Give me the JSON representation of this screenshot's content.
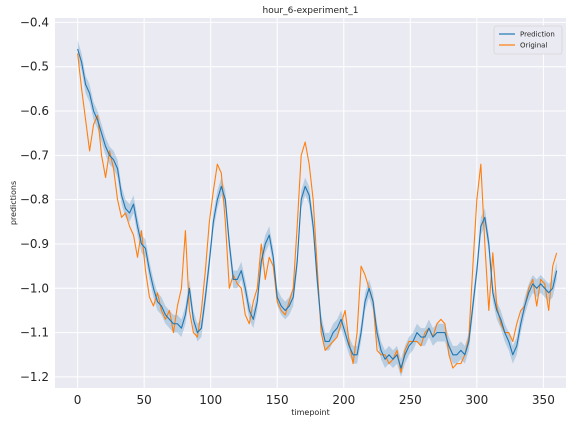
{
  "chart_data": {
    "type": "line",
    "title": "hour_6-experiment_1",
    "xlabel": "timepoint",
    "ylabel": "predictions",
    "xlim": [
      -17,
      367
    ],
    "ylim": [
      -1.225,
      -0.39
    ],
    "x_ticks": [
      0,
      50,
      100,
      150,
      200,
      250,
      300,
      350
    ],
    "x_tick_labels": [
      "0",
      "50",
      "100",
      "150",
      "200",
      "250",
      "300",
      "350"
    ],
    "y_ticks": [
      -0.4,
      -0.5,
      -0.6,
      -0.7,
      -0.8,
      -0.9,
      -1.0,
      -1.1,
      -1.2
    ],
    "y_tick_labels": [
      "−0.4",
      "−0.5",
      "−0.6",
      "−0.7",
      "−0.8",
      "−0.9",
      "−1.0",
      "−1.1",
      "−1.2"
    ],
    "grid": true,
    "legend_position": "top-right",
    "series": [
      {
        "name": "Prediction",
        "color": "#1f77b4",
        "band": 0.02,
        "x": [
          0,
          3,
          6,
          9,
          12,
          15,
          18,
          21,
          24,
          27,
          30,
          33,
          36,
          39,
          42,
          45,
          48,
          51,
          54,
          57,
          60,
          63,
          66,
          69,
          72,
          75,
          78,
          81,
          84,
          87,
          90,
          93,
          96,
          99,
          102,
          105,
          108,
          111,
          114,
          117,
          120,
          123,
          126,
          129,
          132,
          135,
          138,
          141,
          144,
          147,
          150,
          153,
          156,
          159,
          162,
          165,
          168,
          171,
          174,
          177,
          180,
          183,
          186,
          189,
          192,
          195,
          198,
          201,
          204,
          207,
          210,
          213,
          216,
          219,
          222,
          225,
          228,
          231,
          234,
          237,
          240,
          243,
          246,
          249,
          252,
          255,
          258,
          261,
          264,
          267,
          270,
          273,
          276,
          279,
          282,
          285,
          288,
          291,
          294,
          297,
          300,
          303,
          306,
          309,
          312,
          315,
          318,
          321,
          324,
          327,
          330,
          333,
          336,
          339,
          342,
          345,
          348,
          351,
          354,
          357,
          360
        ],
        "y": [
          -0.46,
          -0.49,
          -0.54,
          -0.56,
          -0.6,
          -0.62,
          -0.65,
          -0.68,
          -0.7,
          -0.71,
          -0.73,
          -0.79,
          -0.82,
          -0.83,
          -0.81,
          -0.86,
          -0.9,
          -0.91,
          -0.96,
          -1.0,
          -1.03,
          -1.04,
          -1.06,
          -1.07,
          -1.08,
          -1.08,
          -1.09,
          -1.06,
          -1.0,
          -1.07,
          -1.1,
          -1.09,
          -1.02,
          -0.94,
          -0.85,
          -0.8,
          -0.77,
          -0.8,
          -0.9,
          -0.98,
          -0.98,
          -0.96,
          -1.0,
          -1.05,
          -1.07,
          -1.03,
          -0.94,
          -0.9,
          -0.88,
          -0.93,
          -1.02,
          -1.04,
          -1.05,
          -1.04,
          -1.02,
          -0.94,
          -0.8,
          -0.77,
          -0.79,
          -0.86,
          -0.98,
          -1.08,
          -1.12,
          -1.12,
          -1.1,
          -1.09,
          -1.07,
          -1.1,
          -1.13,
          -1.15,
          -1.15,
          -1.1,
          -1.03,
          -1.0,
          -1.03,
          -1.1,
          -1.14,
          -1.16,
          -1.15,
          -1.16,
          -1.15,
          -1.18,
          -1.15,
          -1.13,
          -1.12,
          -1.1,
          -1.11,
          -1.11,
          -1.09,
          -1.11,
          -1.1,
          -1.1,
          -1.1,
          -1.13,
          -1.15,
          -1.15,
          -1.14,
          -1.15,
          -1.12,
          -1.04,
          -0.96,
          -0.86,
          -0.84,
          -0.9,
          -1.01,
          -1.05,
          -1.07,
          -1.1,
          -1.12,
          -1.15,
          -1.13,
          -1.08,
          -1.04,
          -1.01,
          -0.99,
          -1.0,
          -0.99,
          -1.0,
          -1.01,
          -1.0,
          -0.96
        ]
      },
      {
        "name": "Original",
        "color": "#ff7f0e",
        "band": 0,
        "x": [
          0,
          3,
          6,
          9,
          12,
          15,
          18,
          21,
          24,
          27,
          30,
          33,
          36,
          39,
          42,
          45,
          48,
          51,
          54,
          57,
          60,
          63,
          66,
          69,
          72,
          75,
          78,
          81,
          84,
          87,
          90,
          93,
          96,
          99,
          102,
          105,
          108,
          111,
          114,
          117,
          120,
          123,
          126,
          129,
          132,
          135,
          138,
          141,
          144,
          147,
          150,
          153,
          156,
          159,
          162,
          165,
          168,
          171,
          174,
          177,
          180,
          183,
          186,
          189,
          192,
          195,
          198,
          201,
          204,
          207,
          210,
          213,
          216,
          219,
          222,
          225,
          228,
          231,
          234,
          237,
          240,
          243,
          246,
          249,
          252,
          255,
          258,
          261,
          264,
          267,
          270,
          273,
          276,
          279,
          282,
          285,
          288,
          291,
          294,
          297,
          300,
          303,
          306,
          309,
          312,
          315,
          318,
          321,
          324,
          327,
          330,
          333,
          336,
          339,
          342,
          345,
          348,
          351,
          354,
          357,
          360
        ],
        "y": [
          -0.47,
          -0.55,
          -0.62,
          -0.69,
          -0.63,
          -0.61,
          -0.7,
          -0.75,
          -0.69,
          -0.73,
          -0.8,
          -0.84,
          -0.83,
          -0.86,
          -0.88,
          -0.93,
          -0.87,
          -0.96,
          -1.02,
          -1.04,
          -1.01,
          -1.05,
          -1.07,
          -1.05,
          -1.1,
          -1.04,
          -1.0,
          -0.87,
          -1.05,
          -1.1,
          -1.11,
          -1.05,
          -0.96,
          -0.85,
          -0.78,
          -0.72,
          -0.74,
          -0.85,
          -1.0,
          -0.97,
          -0.99,
          -1.0,
          -1.06,
          -1.08,
          -1.03,
          -1.0,
          -0.9,
          -0.98,
          -0.93,
          -0.95,
          -1.03,
          -1.05,
          -1.06,
          -1.03,
          -1.0,
          -0.86,
          -0.7,
          -0.67,
          -0.72,
          -0.8,
          -0.95,
          -1.1,
          -1.14,
          -1.13,
          -1.12,
          -1.11,
          -1.08,
          -1.05,
          -1.12,
          -1.17,
          -1.1,
          -0.95,
          -0.97,
          -1.0,
          -1.03,
          -1.14,
          -1.15,
          -1.15,
          -1.17,
          -1.16,
          -1.14,
          -1.19,
          -1.14,
          -1.12,
          -1.12,
          -1.12,
          -1.13,
          -1.1,
          -1.09,
          -1.11,
          -1.08,
          -1.07,
          -1.08,
          -1.15,
          -1.18,
          -1.17,
          -1.17,
          -1.15,
          -1.11,
          -0.95,
          -0.8,
          -0.72,
          -0.9,
          -1.05,
          -0.92,
          -1.04,
          -1.08,
          -1.1,
          -1.1,
          -1.12,
          -1.08,
          -1.05,
          -1.04,
          -1.0,
          -0.98,
          -1.04,
          -0.98,
          -0.99,
          -1.05,
          -0.95,
          -0.92
        ]
      }
    ]
  }
}
